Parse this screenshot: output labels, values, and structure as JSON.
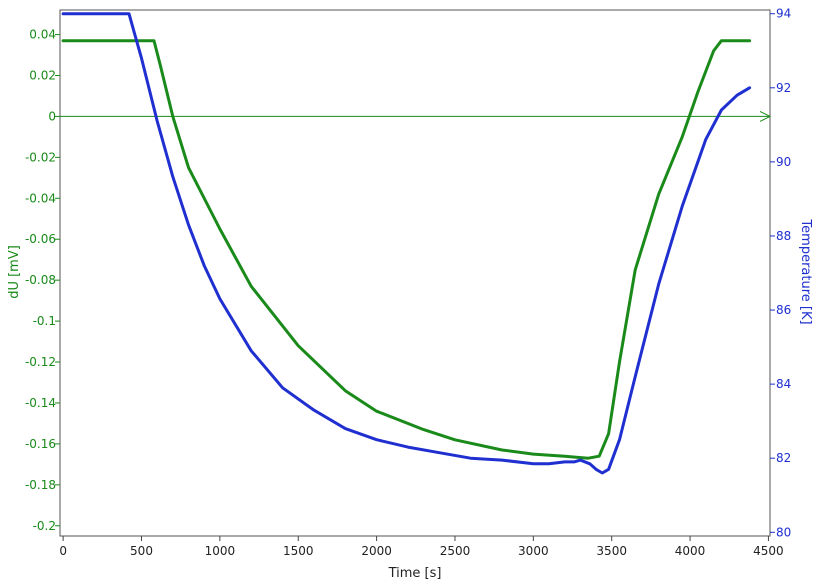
{
  "chart_data": {
    "type": "line",
    "xlabel": "Time [s]",
    "ylabel_left": "dU [mV]",
    "ylabel_right": "Temperature [K]",
    "xlim": [
      -20,
      4510
    ],
    "ylim_left": [
      -0.205,
      0.052
    ],
    "ylim_right": [
      79.9,
      94.1
    ],
    "x_ticks": [
      0,
      500,
      1000,
      1500,
      2000,
      2500,
      3000,
      3500,
      4000,
      4500
    ],
    "x_tick_labels": [
      "0",
      "500",
      "1000",
      "1500",
      "2000",
      "2500",
      "3000",
      "3500",
      "4000",
      "4500"
    ],
    "y_left_ticks": [
      0.04,
      0.02,
      0,
      -0.02,
      -0.04,
      -0.06,
      -0.08,
      -0.1,
      -0.12,
      -0.14,
      -0.16,
      -0.18,
      -0.2
    ],
    "y_left_tick_labels": [
      "0.04",
      "0.02",
      "0",
      "-0.02",
      "-0.04",
      "-0.06",
      "-0.08",
      "-0.1",
      "-0.12",
      "-0.14",
      "-0.16",
      "-0.18",
      "-0.2"
    ],
    "y_right_ticks": [
      94,
      92,
      90,
      88,
      86,
      84,
      82,
      80
    ],
    "y_right_tick_labels": [
      "94",
      "92",
      "90",
      "88",
      "86",
      "84",
      "82",
      "80"
    ],
    "grid": false,
    "zero_line": true,
    "series": [
      {
        "axis": "left",
        "color": "#1a8a1a",
        "x": [
          0,
          100,
          300,
          500,
          580,
          620,
          700,
          800,
          1000,
          1200,
          1500,
          1800,
          2000,
          2300,
          2500,
          2800,
          3000,
          3200,
          3350,
          3420,
          3480,
          3550,
          3650,
          3800,
          3950,
          4050,
          4150,
          4200,
          4300,
          4380
        ],
        "y": [
          0.037,
          0.037,
          0.037,
          0.037,
          0.037,
          0.025,
          0.0,
          -0.025,
          -0.055,
          -0.083,
          -0.112,
          -0.134,
          -0.144,
          -0.153,
          -0.158,
          -0.163,
          -0.165,
          -0.166,
          -0.167,
          -0.166,
          -0.155,
          -0.12,
          -0.075,
          -0.038,
          -0.01,
          0.012,
          0.032,
          0.037,
          0.037,
          0.037
        ]
      },
      {
        "axis": "right",
        "color": "#1f2fd0",
        "x": [
          0,
          200,
          420,
          460,
          500,
          600,
          700,
          800,
          900,
          1000,
          1200,
          1400,
          1600,
          1800,
          2000,
          2200,
          2400,
          2600,
          2800,
          3000,
          3100,
          3200,
          3260,
          3300,
          3360,
          3400,
          3440,
          3480,
          3550,
          3650,
          3800,
          3950,
          4100,
          4200,
          4300,
          4380
        ],
        "y": [
          94.0,
          94.0,
          94.0,
          93.4,
          92.8,
          91.1,
          89.6,
          88.3,
          87.2,
          86.3,
          84.9,
          83.9,
          83.3,
          82.8,
          82.5,
          82.3,
          82.15,
          82.0,
          81.95,
          81.85,
          81.85,
          81.9,
          81.9,
          81.95,
          81.85,
          81.7,
          81.6,
          81.7,
          82.5,
          84.2,
          86.7,
          88.8,
          90.6,
          91.4,
          91.8,
          92.0
        ]
      }
    ]
  }
}
